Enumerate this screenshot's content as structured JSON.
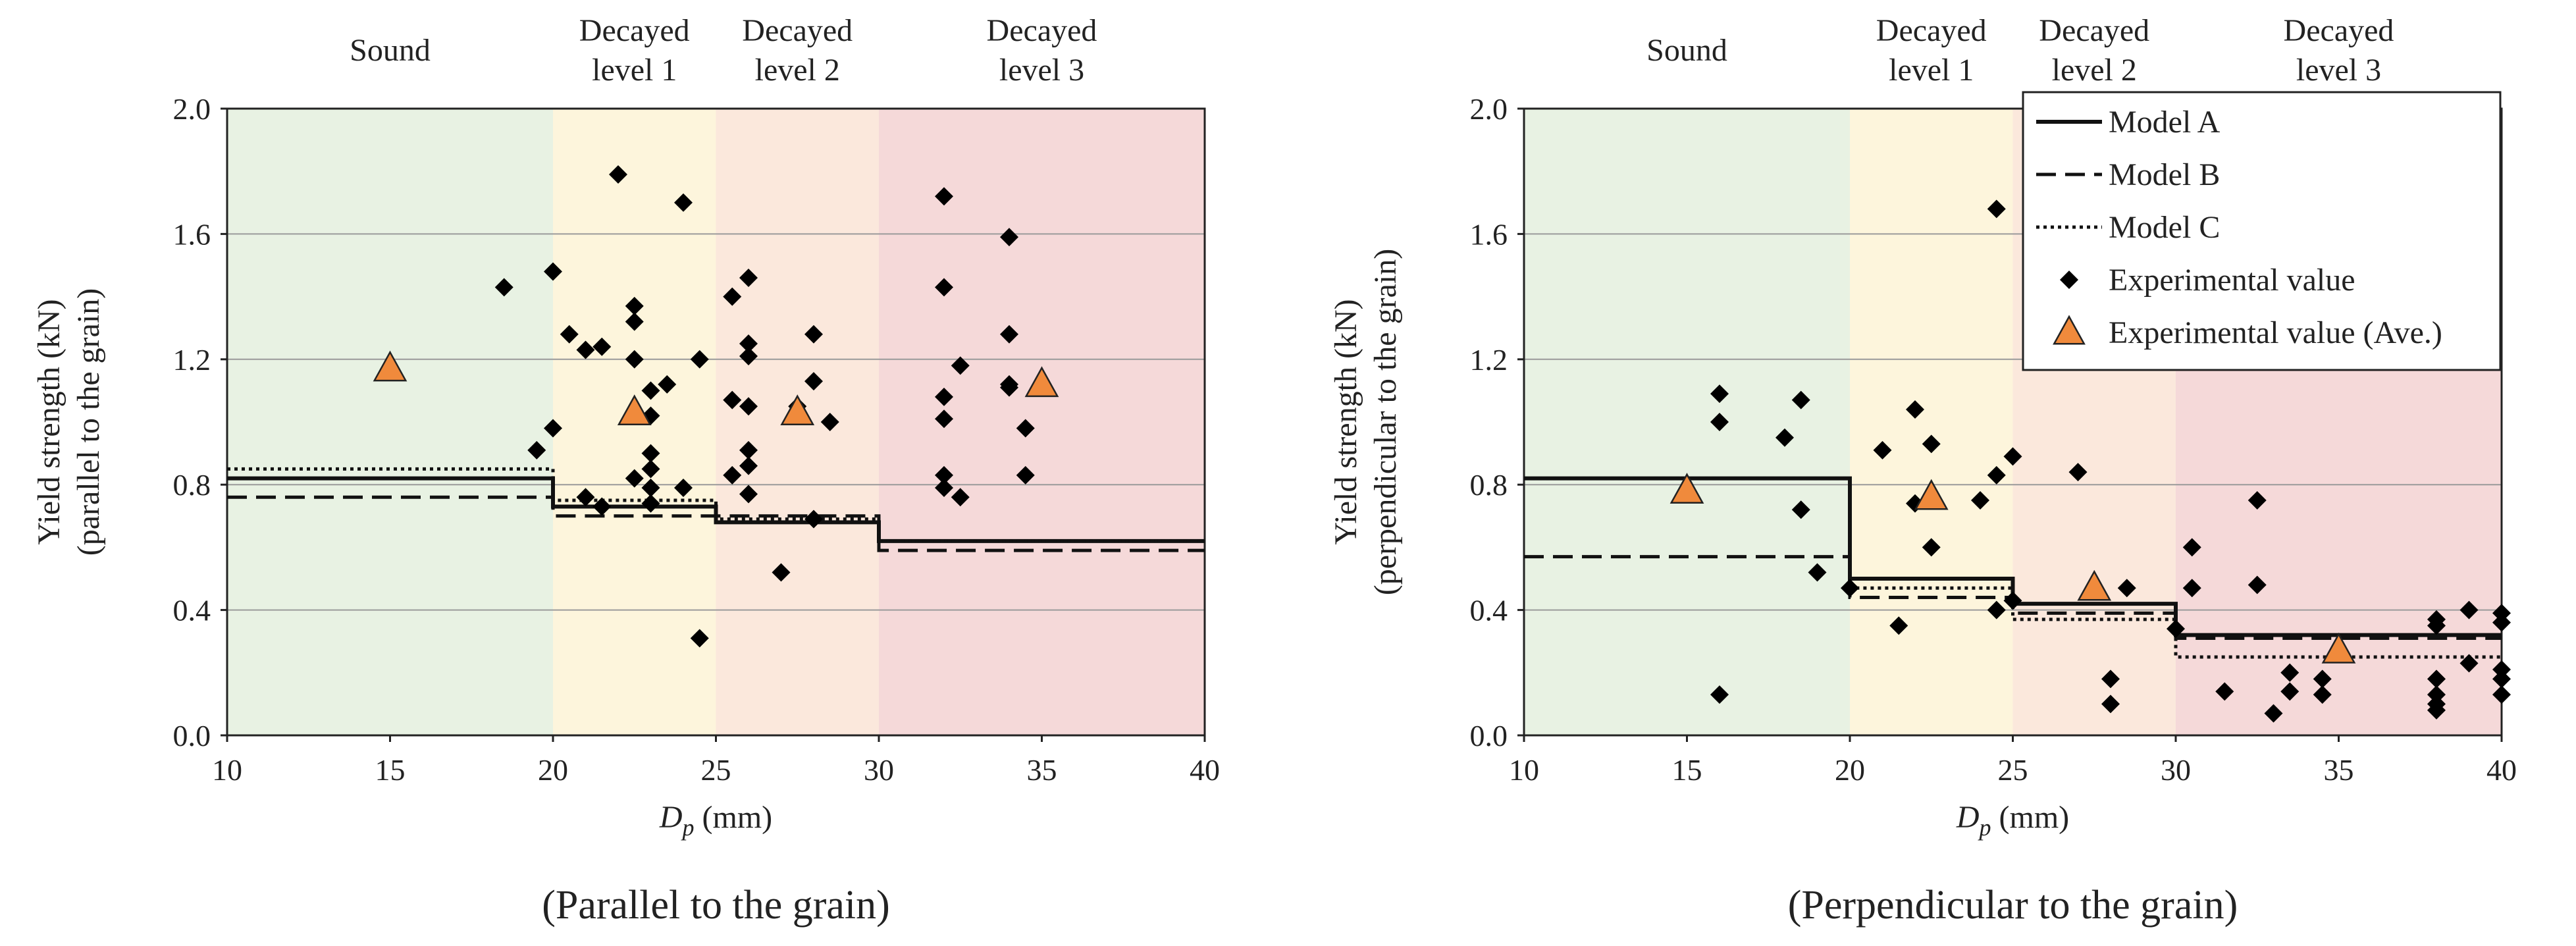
{
  "figure": {
    "background": "#ffffff"
  },
  "chart_data": [
    {
      "type": "scatter",
      "subtitle": "(Parallel to the grain)",
      "xlabel_symbol": "D",
      "xlabel_subscript": "p",
      "xlabel_unit": " (mm)",
      "ylabel_line1": "Yield strength (kN)",
      "ylabel_line2": "(parallel to the grain)",
      "xlim": [
        10,
        40
      ],
      "ylim": [
        0,
        2
      ],
      "x_ticks": [
        10,
        15,
        20,
        25,
        30,
        35,
        40
      ],
      "y_ticks": [
        0.0,
        0.4,
        0.8,
        1.2,
        1.6,
        2.0
      ],
      "y_tick_labels": [
        "0.0",
        "0.4",
        "0.8",
        "1.2",
        "1.6",
        "2.0"
      ],
      "grid": "horizontal",
      "zones": [
        {
          "x_from": 10,
          "x_to": 20,
          "label_lines": [
            "Sound"
          ],
          "color": "#e8f2e3"
        },
        {
          "x_from": 20,
          "x_to": 25,
          "label_lines": [
            "Decayed",
            "level 1"
          ],
          "color": "#fdf5dc"
        },
        {
          "x_from": 25,
          "x_to": 30,
          "label_lines": [
            "Decayed",
            "level 2"
          ],
          "color": "#fbe8dc"
        },
        {
          "x_from": 30,
          "x_to": 40,
          "label_lines": [
            "Decayed",
            "level 3"
          ],
          "color": "#f5d9d9"
        }
      ],
      "legend": null,
      "series": [
        {
          "name": "Model A",
          "kind": "step",
          "style": "solid",
          "segments": [
            [
              10,
              20,
              0.82
            ],
            [
              20,
              25,
              0.73
            ],
            [
              25,
              30,
              0.68
            ],
            [
              30,
              40,
              0.62
            ]
          ]
        },
        {
          "name": "Model B",
          "kind": "step",
          "style": "dashed",
          "segments": [
            [
              10,
              20,
              0.76
            ],
            [
              20,
              25,
              0.7
            ],
            [
              25,
              30,
              0.7
            ],
            [
              30,
              40,
              0.59
            ]
          ]
        },
        {
          "name": "Model C",
          "kind": "step",
          "style": "dotted",
          "segments": [
            [
              10,
              20,
              0.85
            ],
            [
              20,
              25,
              0.75
            ],
            [
              25,
              30,
              0.69
            ],
            [
              30,
              40,
              0.62
            ]
          ]
        },
        {
          "name": "Experimental value",
          "kind": "scatter",
          "marker": "diamond",
          "color": "#000000",
          "points": [
            [
              18.5,
              1.43
            ],
            [
              19.5,
              0.91
            ],
            [
              20,
              1.48
            ],
            [
              20,
              0.98
            ],
            [
              20.5,
              1.28
            ],
            [
              21,
              1.23
            ],
            [
              21.5,
              1.24
            ],
            [
              22,
              1.79
            ],
            [
              22.5,
              1.37
            ],
            [
              22.5,
              1.32
            ],
            [
              22.5,
              1.2
            ],
            [
              23,
              1.1
            ],
            [
              23.5,
              1.12
            ],
            [
              23,
              1.02
            ],
            [
              23,
              0.9
            ],
            [
              23,
              0.85
            ],
            [
              22.5,
              0.82
            ],
            [
              23,
              0.79
            ],
            [
              23,
              0.74
            ],
            [
              21,
              0.76
            ],
            [
              21.5,
              0.73
            ],
            [
              24,
              1.7
            ],
            [
              24.5,
              1.2
            ],
            [
              24,
              0.79
            ],
            [
              24.5,
              0.31
            ],
            [
              25.5,
              1.4
            ],
            [
              26,
              1.46
            ],
            [
              26,
              1.25
            ],
            [
              26,
              1.21
            ],
            [
              25.5,
              1.07
            ],
            [
              26,
              1.05
            ],
            [
              26,
              0.91
            ],
            [
              26,
              0.86
            ],
            [
              25.5,
              0.83
            ],
            [
              26,
              0.77
            ],
            [
              28,
              1.28
            ],
            [
              28,
              1.13
            ],
            [
              27.5,
              1.05
            ],
            [
              28.5,
              1.0
            ],
            [
              28,
              0.69
            ],
            [
              27,
              0.52
            ],
            [
              32,
              1.72
            ],
            [
              32,
              1.43
            ],
            [
              32,
              1.08
            ],
            [
              32,
              1.01
            ],
            [
              32.5,
              1.18
            ],
            [
              32,
              0.83
            ],
            [
              32,
              0.79
            ],
            [
              32.5,
              0.76
            ],
            [
              34,
              1.59
            ],
            [
              34,
              1.28
            ],
            [
              34,
              1.12
            ],
            [
              34,
              1.11
            ],
            [
              34.5,
              0.98
            ],
            [
              34.5,
              0.83
            ]
          ]
        },
        {
          "name": "Experimental value (Ave.)",
          "kind": "scatter",
          "marker": "triangle",
          "color": "#f08a3c",
          "points": [
            [
              15,
              1.17
            ],
            [
              22.5,
              1.03
            ],
            [
              27.5,
              1.03
            ],
            [
              35,
              1.12
            ]
          ]
        }
      ]
    },
    {
      "type": "scatter",
      "subtitle": "(Perpendicular to the grain)",
      "xlabel_symbol": "D",
      "xlabel_subscript": "p",
      "xlabel_unit": " (mm)",
      "ylabel_line1": "Yield strength (kN)",
      "ylabel_line2": "(perpendicular to the grain)",
      "xlim": [
        10,
        40
      ],
      "ylim": [
        0,
        2
      ],
      "x_ticks": [
        10,
        15,
        20,
        25,
        30,
        35,
        40
      ],
      "y_ticks": [
        0.0,
        0.4,
        0.8,
        1.2,
        1.6,
        2.0
      ],
      "y_tick_labels": [
        "0.0",
        "0.4",
        "0.8",
        "1.2",
        "1.6",
        "2.0"
      ],
      "grid": "horizontal",
      "zones": [
        {
          "x_from": 10,
          "x_to": 20,
          "label_lines": [
            "Sound"
          ],
          "color": "#e8f2e3"
        },
        {
          "x_from": 20,
          "x_to": 25,
          "label_lines": [
            "Decayed",
            "level 1"
          ],
          "color": "#fdf5dc"
        },
        {
          "x_from": 25,
          "x_to": 30,
          "label_lines": [
            "Decayed",
            "level 2"
          ],
          "color": "#fbe8dc"
        },
        {
          "x_from": 30,
          "x_to": 40,
          "label_lines": [
            "Decayed",
            "level 3"
          ],
          "color": "#f5d9d9"
        }
      ],
      "legend": "top-right",
      "series": [
        {
          "name": "Model A",
          "kind": "step",
          "style": "solid",
          "segments": [
            [
              10,
              20,
              0.82
            ],
            [
              20,
              25,
              0.5
            ],
            [
              25,
              30,
              0.42
            ],
            [
              30,
              40,
              0.32
            ]
          ]
        },
        {
          "name": "Model B",
          "kind": "step",
          "style": "dashed",
          "segments": [
            [
              10,
              20,
              0.57
            ],
            [
              20,
              25,
              0.44
            ],
            [
              25,
              30,
              0.39
            ],
            [
              30,
              40,
              0.31
            ]
          ]
        },
        {
          "name": "Model C",
          "kind": "step",
          "style": "dotted",
          "segments": [
            [
              10,
              20,
              0.82
            ],
            [
              20,
              25,
              0.47
            ],
            [
              25,
              30,
              0.37
            ],
            [
              30,
              40,
              0.25
            ]
          ]
        },
        {
          "name": "Experimental value",
          "kind": "scatter",
          "marker": "diamond",
          "color": "#000000",
          "points": [
            [
              16,
              1.09
            ],
            [
              16,
              1.0
            ],
            [
              16,
              0.13
            ],
            [
              18,
              0.95
            ],
            [
              18.5,
              1.07
            ],
            [
              18.5,
              0.72
            ],
            [
              19,
              0.52
            ],
            [
              20,
              0.47
            ],
            [
              21,
              0.91
            ],
            [
              21.5,
              0.35
            ],
            [
              22,
              1.04
            ],
            [
              22,
              0.74
            ],
            [
              22.5,
              0.93
            ],
            [
              22.5,
              0.6
            ],
            [
              24,
              0.75
            ],
            [
              24.5,
              0.83
            ],
            [
              24.5,
              1.68
            ],
            [
              25,
              0.89
            ],
            [
              24.5,
              0.4
            ],
            [
              25,
              0.43
            ],
            [
              27,
              0.84
            ],
            [
              28.5,
              0.47
            ],
            [
              28,
              0.18
            ],
            [
              28,
              0.1
            ],
            [
              30,
              0.34
            ],
            [
              30.5,
              0.6
            ],
            [
              30.5,
              0.47
            ],
            [
              31.5,
              0.14
            ],
            [
              32.5,
              0.75
            ],
            [
              32.5,
              0.48
            ],
            [
              33,
              0.07
            ],
            [
              33.5,
              0.2
            ],
            [
              33.5,
              0.14
            ],
            [
              34.5,
              0.18
            ],
            [
              34.5,
              0.13
            ],
            [
              38,
              0.37
            ],
            [
              38,
              0.35
            ],
            [
              38,
              0.18
            ],
            [
              38,
              0.13
            ],
            [
              38,
              0.1
            ],
            [
              38,
              0.08
            ],
            [
              39,
              0.4
            ],
            [
              39,
              0.23
            ],
            [
              40,
              0.39
            ],
            [
              40,
              0.36
            ],
            [
              40,
              0.21
            ],
            [
              40,
              0.18
            ],
            [
              40,
              0.13
            ]
          ]
        },
        {
          "name": "Experimental value (Ave.)",
          "kind": "scatter",
          "marker": "triangle",
          "color": "#f08a3c",
          "points": [
            [
              15,
              0.78
            ],
            [
              22.5,
              0.76
            ],
            [
              27.5,
              0.47
            ],
            [
              35,
              0.27
            ]
          ]
        }
      ]
    }
  ]
}
